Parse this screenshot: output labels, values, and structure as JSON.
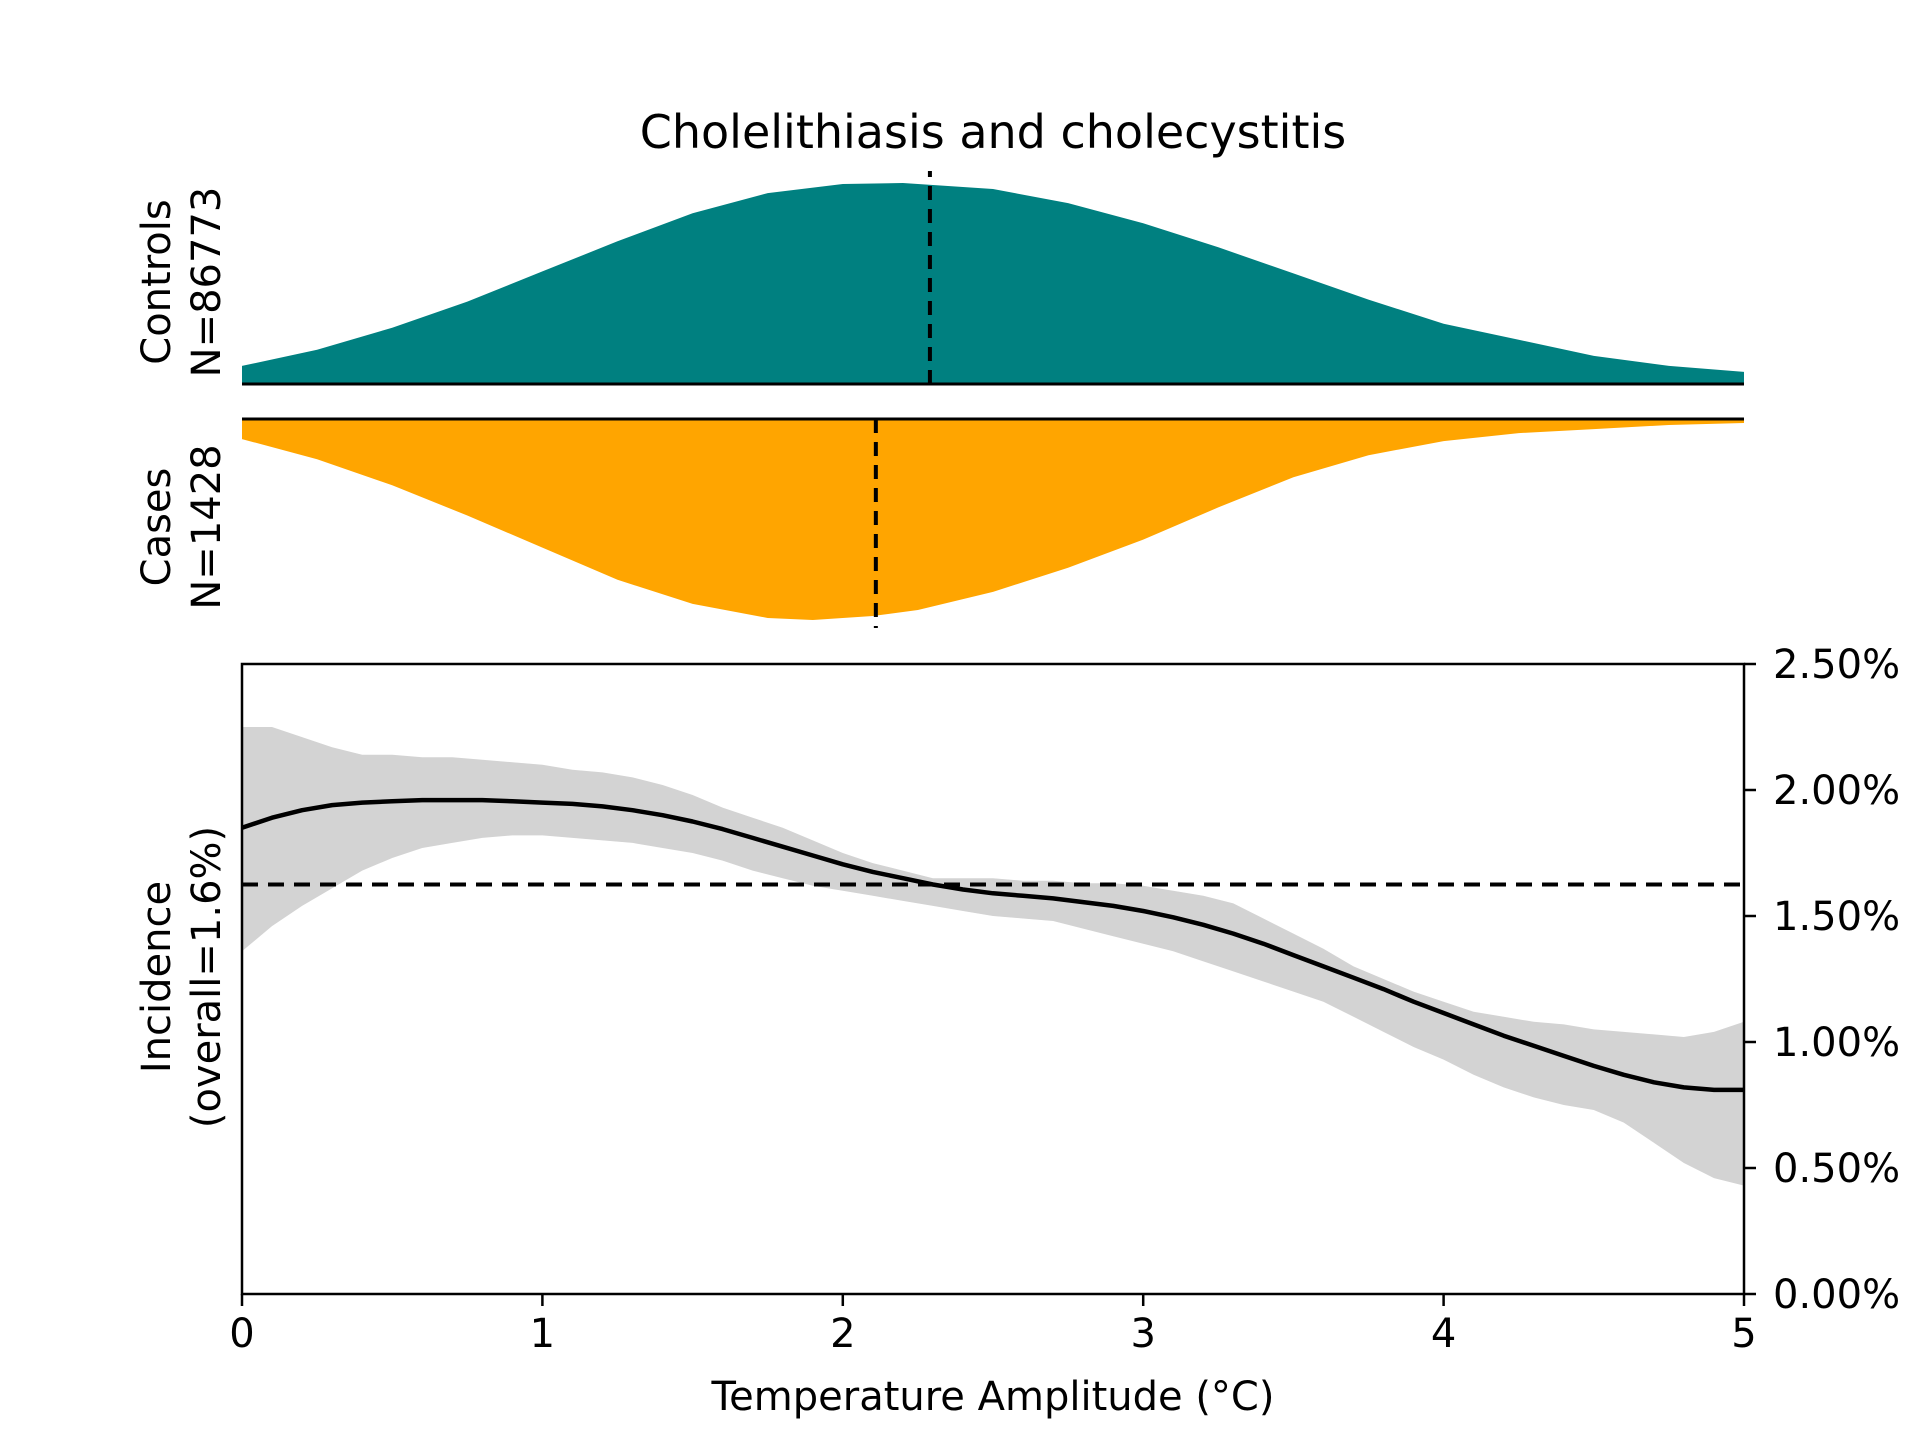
{
  "chart_data": [
    {
      "type": "area",
      "panel": "controls",
      "title": "Cholelithiasis and cholecystitis",
      "label_line1": "Controls",
      "label_line2": "N=86773",
      "color": "#008080",
      "x": [
        0,
        0.25,
        0.5,
        0.75,
        1,
        1.25,
        1.5,
        1.75,
        2,
        2.2,
        2.5,
        2.75,
        3,
        3.25,
        3.5,
        3.75,
        4,
        4.25,
        4.5,
        4.75,
        5
      ],
      "density": [
        0.09,
        0.17,
        0.28,
        0.41,
        0.56,
        0.71,
        0.85,
        0.95,
        0.995,
        1.0,
        0.97,
        0.9,
        0.8,
        0.68,
        0.55,
        0.42,
        0.3,
        0.22,
        0.14,
        0.09,
        0.06
      ],
      "median": 2.29,
      "xlim": [
        0,
        5
      ]
    },
    {
      "type": "area",
      "panel": "cases",
      "label_line1": "Cases",
      "label_line2": "N=1428",
      "color": "#FFA500",
      "x": [
        0,
        0.25,
        0.5,
        0.75,
        1,
        1.25,
        1.5,
        1.75,
        1.9,
        2.1,
        2.25,
        2.5,
        2.75,
        3,
        3.25,
        3.5,
        3.75,
        4,
        4.25,
        4.5,
        4.75,
        5
      ],
      "density": [
        0.1,
        0.2,
        0.33,
        0.48,
        0.64,
        0.8,
        0.92,
        0.99,
        1.0,
        0.98,
        0.95,
        0.86,
        0.74,
        0.6,
        0.44,
        0.29,
        0.18,
        0.11,
        0.07,
        0.05,
        0.03,
        0.02
      ],
      "median": 2.11,
      "xlim": [
        0,
        5
      ]
    },
    {
      "type": "line",
      "panel": "incidence",
      "ylabel_line1": "Incidence",
      "ylabel_line2": "(overall=1.6%)",
      "xlabel": "Temperature Amplitude (°C)",
      "x": [
        0,
        0.1,
        0.2,
        0.3,
        0.4,
        0.5,
        0.6,
        0.7,
        0.8,
        0.9,
        1.0,
        1.1,
        1.2,
        1.3,
        1.4,
        1.5,
        1.6,
        1.7,
        1.8,
        1.9,
        2.0,
        2.1,
        2.2,
        2.3,
        2.4,
        2.5,
        2.6,
        2.7,
        2.8,
        2.9,
        3.0,
        3.1,
        3.2,
        3.3,
        3.4,
        3.5,
        3.6,
        3.7,
        3.8,
        3.9,
        4.0,
        4.1,
        4.2,
        4.3,
        4.4,
        4.5,
        4.6,
        4.7,
        4.8,
        4.9,
        5.0
      ],
      "y": [
        1.85,
        1.89,
        1.92,
        1.94,
        1.95,
        1.955,
        1.96,
        1.96,
        1.96,
        1.955,
        1.95,
        1.945,
        1.935,
        1.92,
        1.9,
        1.875,
        1.845,
        1.81,
        1.775,
        1.74,
        1.705,
        1.675,
        1.65,
        1.625,
        1.605,
        1.59,
        1.58,
        1.57,
        1.555,
        1.54,
        1.52,
        1.495,
        1.465,
        1.43,
        1.39,
        1.345,
        1.3,
        1.255,
        1.21,
        1.16,
        1.115,
        1.07,
        1.025,
        0.985,
        0.945,
        0.905,
        0.87,
        0.84,
        0.82,
        0.81,
        0.81
      ],
      "ci_lower": [
        1.36,
        1.46,
        1.54,
        1.61,
        1.68,
        1.73,
        1.77,
        1.79,
        1.81,
        1.82,
        1.82,
        1.81,
        1.8,
        1.79,
        1.77,
        1.75,
        1.72,
        1.68,
        1.65,
        1.62,
        1.6,
        1.58,
        1.56,
        1.54,
        1.52,
        1.5,
        1.49,
        1.48,
        1.45,
        1.42,
        1.39,
        1.36,
        1.32,
        1.28,
        1.24,
        1.2,
        1.16,
        1.1,
        1.04,
        0.98,
        0.93,
        0.87,
        0.82,
        0.78,
        0.75,
        0.73,
        0.68,
        0.6,
        0.52,
        0.46,
        0.43
      ],
      "ci_upper": [
        2.25,
        2.25,
        2.21,
        2.17,
        2.14,
        2.14,
        2.13,
        2.13,
        2.12,
        2.11,
        2.1,
        2.08,
        2.07,
        2.05,
        2.02,
        1.98,
        1.93,
        1.89,
        1.85,
        1.8,
        1.75,
        1.71,
        1.68,
        1.65,
        1.65,
        1.65,
        1.64,
        1.64,
        1.63,
        1.63,
        1.62,
        1.6,
        1.58,
        1.55,
        1.49,
        1.43,
        1.37,
        1.3,
        1.25,
        1.2,
        1.16,
        1.12,
        1.1,
        1.08,
        1.07,
        1.05,
        1.04,
        1.03,
        1.02,
        1.04,
        1.08
      ],
      "overall_incidence": 1.625,
      "xlim": [
        0,
        5
      ],
      "ylim": [
        0,
        2.5
      ],
      "xticks": [
        "0",
        "1",
        "2",
        "3",
        "4",
        "5"
      ],
      "yticks": [
        "0.00%",
        "0.50%",
        "1.00%",
        "1.50%",
        "2.00%",
        "2.50%"
      ],
      "ci_color": "#D3D3D3",
      "line_color": "#000000"
    }
  ]
}
